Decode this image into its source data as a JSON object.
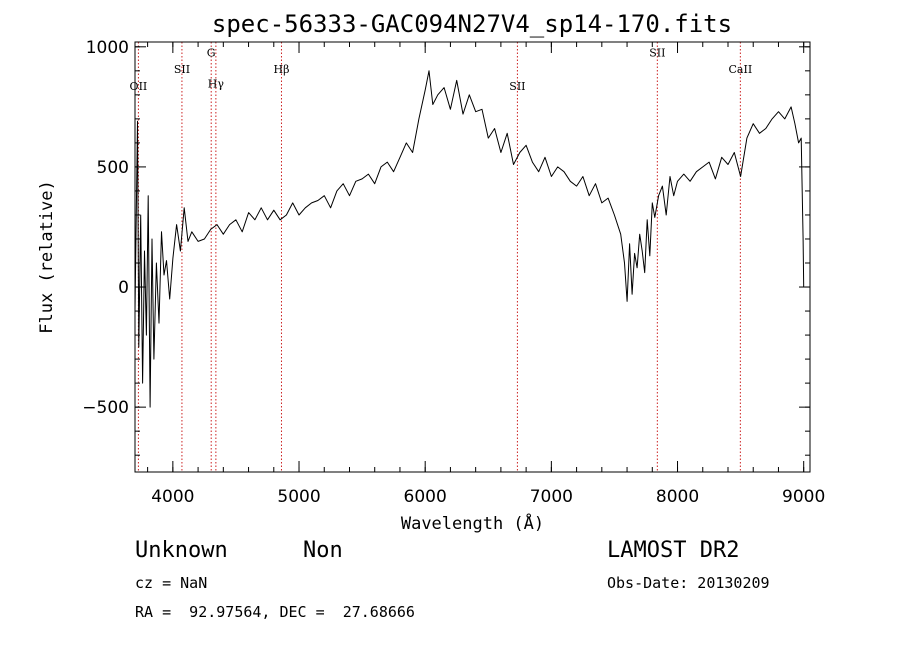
{
  "title": "spec-56333-GAC094N27V4_sp14-170.fits",
  "info": {
    "class": "Unknown",
    "subclass": "Non",
    "survey": "LAMOST DR2",
    "cz": "cz = NaN",
    "obs_date": "Obs-Date: 20130209",
    "coords": "RA =  92.97564, DEC =  27.68666"
  },
  "colors": {
    "spectrum": "#000000",
    "line_marker": "#cc2222",
    "axis": "#000000"
  },
  "chart_data": {
    "type": "line",
    "title": "spec-56333-GAC094N27V4_sp14-170.fits",
    "xlabel": "Wavelength (Å)",
    "ylabel": "Flux (relative)",
    "xlim": [
      3700,
      9050
    ],
    "ylim": [
      -770,
      1020
    ],
    "xticks": [
      4000,
      5000,
      6000,
      7000,
      8000,
      9000
    ],
    "xtick_labels": [
      "4000",
      "5000",
      "6000",
      "7000",
      "8000",
      "9000"
    ],
    "yticks": [
      -500,
      0,
      500,
      1000
    ],
    "ytick_labels": [
      "−500",
      "0",
      "500",
      "1000"
    ],
    "x_minor_step": 200,
    "y_minor_step": 100,
    "grid": false,
    "lines": [
      {
        "label": "OII",
        "wavelength": 3727,
        "label_flux": 820
      },
      {
        "label": "SII",
        "wavelength": 4072,
        "label_flux": 890
      },
      {
        "label": "G",
        "wavelength": 4304,
        "label_flux": 960
      },
      {
        "label": "Hγ",
        "wavelength": 4341,
        "label_flux": 830
      },
      {
        "label": "Hβ",
        "wavelength": 4861,
        "label_flux": 890
      },
      {
        "label": "SII",
        "wavelength": 6731,
        "label_flux": 820
      },
      {
        "label": "SII",
        "wavelength": 7840,
        "label_flux": 960
      },
      {
        "label": "CaII",
        "wavelength": 8498,
        "label_flux": 890
      }
    ],
    "series": [
      {
        "x": [
          3700,
          3720,
          3730,
          3745,
          3760,
          3775,
          3790,
          3805,
          3820,
          3835,
          3850,
          3870,
          3890,
          3910,
          3930,
          3950,
          3975,
          4000,
          4030,
          4060,
          4090,
          4120,
          4150,
          4200,
          4250,
          4300,
          4350,
          4400,
          4450,
          4500,
          4550,
          4600,
          4650,
          4700,
          4750,
          4800,
          4850,
          4900,
          4950,
          5000,
          5050,
          5100,
          5150,
          5200,
          5250,
          5300,
          5350,
          5400,
          5450,
          5500,
          5550,
          5600,
          5650,
          5700,
          5750,
          5800,
          5850,
          5900,
          5950,
          6000,
          6030,
          6060,
          6100,
          6150,
          6200,
          6250,
          6300,
          6350,
          6400,
          6450,
          6500,
          6550,
          6600,
          6650,
          6700,
          6750,
          6800,
          6850,
          6900,
          6950,
          7000,
          7050,
          7100,
          7150,
          7200,
          7250,
          7300,
          7350,
          7400,
          7450,
          7500,
          7550,
          7580,
          7600,
          7620,
          7640,
          7660,
          7680,
          7700,
          7720,
          7740,
          7760,
          7780,
          7800,
          7820,
          7850,
          7880,
          7910,
          7940,
          7970,
          8000,
          8050,
          8100,
          8150,
          8200,
          8250,
          8300,
          8350,
          8400,
          8450,
          8500,
          8550,
          8600,
          8650,
          8700,
          8750,
          8800,
          8850,
          8900,
          8930,
          8960,
          8980,
          8995,
          9000
        ],
        "y": [
          -100,
          690,
          -250,
          300,
          -400,
          150,
          -200,
          380,
          -500,
          200,
          -300,
          100,
          -150,
          230,
          50,
          110,
          -50,
          120,
          260,
          150,
          330,
          190,
          230,
          190,
          200,
          240,
          260,
          220,
          260,
          280,
          230,
          310,
          280,
          330,
          280,
          320,
          280,
          300,
          350,
          300,
          330,
          350,
          360,
          380,
          330,
          400,
          430,
          380,
          440,
          450,
          470,
          430,
          500,
          520,
          480,
          540,
          600,
          560,
          700,
          820,
          900,
          760,
          800,
          830,
          740,
          860,
          720,
          800,
          730,
          740,
          620,
          660,
          560,
          640,
          510,
          560,
          590,
          520,
          480,
          540,
          460,
          500,
          480,
          440,
          420,
          460,
          380,
          430,
          350,
          370,
          300,
          220,
          100,
          -60,
          180,
          -30,
          140,
          80,
          220,
          150,
          60,
          280,
          130,
          350,
          290,
          380,
          420,
          300,
          460,
          380,
          440,
          470,
          440,
          480,
          500,
          520,
          450,
          540,
          510,
          560,
          460,
          620,
          680,
          640,
          660,
          700,
          730,
          700,
          750,
          680,
          600,
          620,
          200,
          0
        ]
      }
    ]
  }
}
